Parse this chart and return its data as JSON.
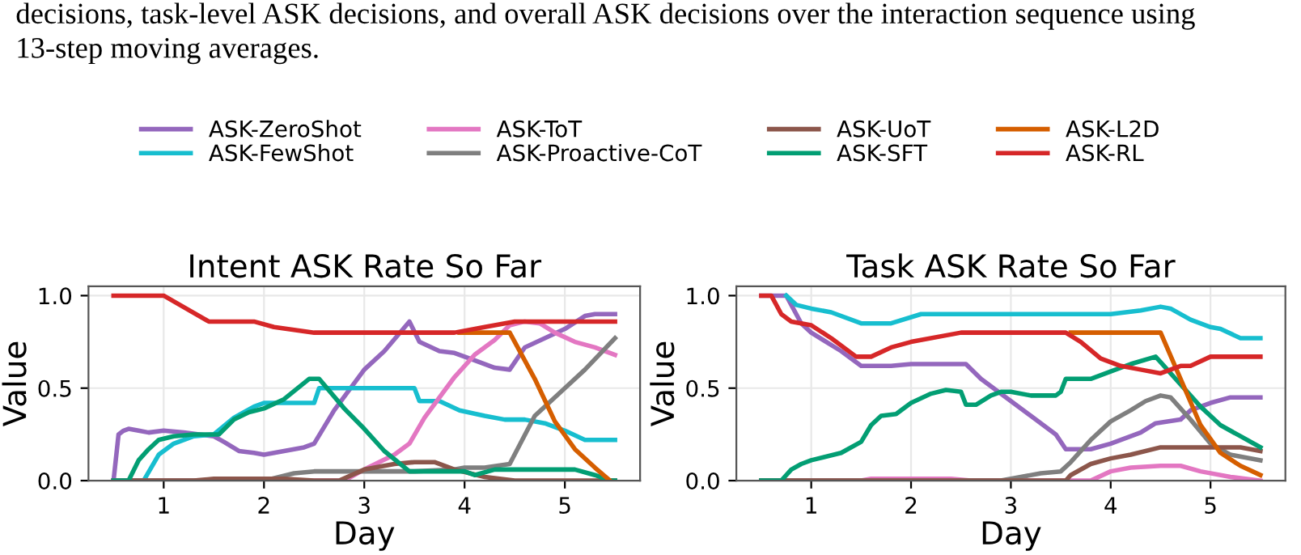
{
  "chart_data": [
    {
      "type": "line",
      "title": "Intent ASK Rate So Far",
      "xlabel": "Day",
      "ylabel": "Value",
      "xlim": [
        0.25,
        5.75
      ],
      "ylim": [
        0,
        1.05
      ],
      "xticks": [
        1,
        2,
        3,
        4,
        5
      ],
      "yticks": [
        {
          "value": 0,
          "label": "0.0"
        },
        {
          "value": 0.5,
          "label": "0.5"
        },
        {
          "value": 1,
          "label": "1.0"
        }
      ],
      "grid": true,
      "legend": "top",
      "line_style": "solid",
      "marker": "none",
      "annotations": [
        "decisions, task-level ASK decisions, and overall ASK decisions over the interaction sequence using",
        "13-step moving averages."
      ],
      "series": [
        {
          "name": "ASK-ZeroShot",
          "color": "#9467bd",
          "x": [
            0.5,
            0.55,
            0.6,
            0.65,
            0.75,
            0.85,
            1.0,
            1.2,
            1.5,
            1.6,
            1.75,
            1.9,
            2.0,
            2.2,
            2.4,
            2.5,
            2.7,
            3.0,
            3.2,
            3.45,
            3.55,
            3.75,
            3.9,
            4.1,
            4.3,
            4.45,
            4.6,
            4.8,
            5.0,
            5.2,
            5.3,
            5.5
          ],
          "values": [
            0,
            0.25,
            0.27,
            0.28,
            0.27,
            0.26,
            0.27,
            0.26,
            0.24,
            0.21,
            0.16,
            0.15,
            0.14,
            0.16,
            0.18,
            0.2,
            0.38,
            0.6,
            0.7,
            0.86,
            0.75,
            0.7,
            0.69,
            0.65,
            0.61,
            0.6,
            0.72,
            0.77,
            0.82,
            0.89,
            0.9,
            0.9
          ]
        },
        {
          "name": "ASK-FewShot",
          "color": "#17becf",
          "x": [
            0.5,
            0.8,
            0.95,
            1.1,
            1.3,
            1.5,
            1.7,
            1.9,
            2.0,
            2.5,
            2.55,
            3.5,
            3.55,
            3.75,
            3.95,
            4.2,
            4.4,
            4.6,
            4.8,
            5.0,
            5.2,
            5.5
          ],
          "values": [
            0,
            0,
            0.14,
            0.2,
            0.24,
            0.25,
            0.34,
            0.4,
            0.42,
            0.42,
            0.5,
            0.5,
            0.43,
            0.43,
            0.38,
            0.35,
            0.33,
            0.33,
            0.31,
            0.27,
            0.22,
            0.22
          ]
        },
        {
          "name": "ASK-ToT",
          "color": "#e377c2",
          "x": [
            0.5,
            2.8,
            3.0,
            3.3,
            3.45,
            3.6,
            3.9,
            4.1,
            4.3,
            4.45,
            4.6,
            4.75,
            4.9,
            5.1,
            5.3,
            5.5
          ],
          "values": [
            0,
            0,
            0.06,
            0.14,
            0.2,
            0.34,
            0.56,
            0.68,
            0.76,
            0.84,
            0.86,
            0.85,
            0.8,
            0.75,
            0.72,
            0.68
          ]
        },
        {
          "name": "ASK-Proactive-CoT",
          "color": "#7f7f7f",
          "x": [
            0.5,
            2.0,
            2.3,
            2.5,
            3.5,
            3.9,
            4.0,
            4.2,
            4.45,
            4.7,
            5.0,
            5.2,
            5.5
          ],
          "values": [
            0,
            0,
            0.04,
            0.05,
            0.05,
            0.06,
            0.07,
            0.07,
            0.09,
            0.35,
            0.5,
            0.6,
            0.77
          ]
        },
        {
          "name": "ASK-UoT",
          "color": "#8c564b",
          "x": [
            0.5,
            1.3,
            1.5,
            2.2,
            2.5,
            2.75,
            3.0,
            3.3,
            3.5,
            3.7,
            3.9,
            4.2,
            4.5,
            5.5
          ],
          "values": [
            0,
            0,
            0.01,
            0.01,
            0,
            0,
            0.06,
            0.09,
            0.1,
            0.1,
            0.06,
            0.02,
            0,
            0
          ]
        },
        {
          "name": "ASK-SFT",
          "color": "#029e73",
          "x": [
            0.5,
            0.65,
            0.75,
            0.85,
            0.95,
            1.1,
            1.3,
            1.55,
            1.7,
            1.85,
            2.0,
            2.2,
            2.45,
            2.55,
            2.8,
            3.0,
            3.2,
            3.45,
            4.0,
            4.1,
            4.3,
            5.1,
            5.3,
            5.45,
            5.5
          ],
          "values": [
            0,
            0,
            0.11,
            0.17,
            0.22,
            0.24,
            0.25,
            0.25,
            0.33,
            0.37,
            0.39,
            0.44,
            0.55,
            0.55,
            0.39,
            0.28,
            0.16,
            0.05,
            0.05,
            0.03,
            0.06,
            0.06,
            0.03,
            0,
            0
          ]
        },
        {
          "name": "ASK-L2D",
          "color": "#d55e00",
          "x": [
            3.95,
            4.45,
            4.7,
            4.9,
            5.1,
            5.3,
            5.45
          ],
          "values": [
            0.8,
            0.8,
            0.55,
            0.32,
            0.17,
            0.07,
            0
          ]
        },
        {
          "name": "ASK-RL",
          "color": "#d62728",
          "x": [
            0.5,
            1.0,
            1.45,
            1.9,
            2.1,
            2.5,
            3.9,
            4.2,
            4.5,
            5.5
          ],
          "values": [
            1,
            1,
            0.86,
            0.86,
            0.83,
            0.8,
            0.8,
            0.83,
            0.86,
            0.86
          ]
        }
      ]
    },
    {
      "type": "line",
      "title": "Task ASK Rate So Far",
      "xlabel": "Day",
      "ylabel": "Value",
      "xlim": [
        0.25,
        5.75
      ],
      "ylim": [
        0,
        1.05
      ],
      "xticks": [
        1,
        2,
        3,
        4,
        5
      ],
      "yticks": [
        {
          "value": 0,
          "label": "0.0"
        },
        {
          "value": 0.5,
          "label": "0.5"
        },
        {
          "value": 1,
          "label": "1.0"
        }
      ],
      "grid": true,
      "line_style": "solid",
      "marker": "none",
      "series": [
        {
          "color": "#9467bd",
          "x": [
            0.5,
            0.75,
            0.9,
            1.0,
            1.3,
            1.5,
            1.8,
            2.0,
            2.55,
            2.7,
            3.0,
            3.2,
            3.45,
            3.55,
            3.8,
            4.0,
            4.3,
            4.45,
            4.7,
            4.8,
            5.0,
            5.2,
            5.5
          ],
          "values": [
            1,
            1,
            0.85,
            0.8,
            0.7,
            0.62,
            0.62,
            0.63,
            0.63,
            0.55,
            0.43,
            0.35,
            0.25,
            0.17,
            0.17,
            0.2,
            0.26,
            0.31,
            0.33,
            0.38,
            0.42,
            0.45,
            0.45
          ]
        },
        {
          "color": "#17becf",
          "x": [
            0.75,
            0.85,
            1.0,
            1.2,
            1.5,
            1.8,
            2.1,
            4.0,
            4.3,
            4.5,
            4.6,
            4.8,
            5.0,
            5.1,
            5.3,
            5.5
          ],
          "values": [
            1,
            0.95,
            0.93,
            0.91,
            0.85,
            0.85,
            0.9,
            0.9,
            0.92,
            0.94,
            0.93,
            0.87,
            0.83,
            0.82,
            0.77,
            0.77
          ]
        },
        {
          "color": "#e377c2",
          "x": [
            0.5,
            1.5,
            1.6,
            2.4,
            2.6,
            3.8,
            4.0,
            4.2,
            4.5,
            4.7,
            4.9,
            5.2,
            5.5
          ],
          "values": [
            0,
            0,
            0.01,
            0.01,
            0,
            0,
            0.05,
            0.07,
            0.08,
            0.08,
            0.05,
            0.02,
            0
          ]
        },
        {
          "color": "#7f7f7f",
          "x": [
            0.5,
            2.9,
            3.1,
            3.3,
            3.5,
            3.6,
            3.8,
            4.0,
            4.2,
            4.35,
            4.5,
            4.6,
            4.8,
            5.0,
            5.2,
            5.5
          ],
          "values": [
            0,
            0,
            0.02,
            0.04,
            0.05,
            0.1,
            0.22,
            0.32,
            0.38,
            0.43,
            0.46,
            0.45,
            0.33,
            0.2,
            0.14,
            0.11
          ]
        },
        {
          "color": "#8c564b",
          "x": [
            0.5,
            3.55,
            3.6,
            3.8,
            4.0,
            4.2,
            4.5,
            5.3,
            5.5
          ],
          "values": [
            0,
            0,
            0.03,
            0.09,
            0.12,
            0.14,
            0.18,
            0.18,
            0.16
          ]
        },
        {
          "color": "#029e73",
          "x": [
            0.5,
            0.7,
            0.8,
            0.9,
            1.0,
            1.3,
            1.5,
            1.6,
            1.7,
            1.85,
            2.0,
            2.2,
            2.35,
            2.5,
            2.55,
            2.65,
            2.8,
            2.9,
            3.0,
            3.2,
            3.45,
            3.5,
            3.55,
            3.8,
            4.0,
            4.2,
            4.45,
            4.5,
            4.7,
            4.9,
            5.1,
            5.3,
            5.5
          ],
          "values": [
            0,
            0,
            0.06,
            0.09,
            0.11,
            0.15,
            0.21,
            0.3,
            0.35,
            0.36,
            0.42,
            0.47,
            0.49,
            0.48,
            0.41,
            0.41,
            0.46,
            0.48,
            0.48,
            0.46,
            0.46,
            0.48,
            0.55,
            0.55,
            0.59,
            0.63,
            0.67,
            0.64,
            0.52,
            0.4,
            0.3,
            0.24,
            0.18
          ]
        },
        {
          "color": "#d55e00",
          "x": [
            3.6,
            4.5,
            4.7,
            4.9,
            5.1,
            5.3,
            5.5
          ],
          "values": [
            0.8,
            0.8,
            0.55,
            0.3,
            0.15,
            0.08,
            0.03
          ]
        },
        {
          "color": "#d62728",
          "x": [
            0.5,
            0.6,
            0.7,
            0.8,
            1.0,
            1.2,
            1.45,
            1.6,
            1.8,
            2.0,
            2.5,
            3.55,
            3.7,
            3.9,
            4.1,
            4.3,
            4.5,
            4.6,
            4.7,
            4.8,
            5.0,
            5.5
          ],
          "values": [
            1,
            1,
            0.9,
            0.86,
            0.84,
            0.77,
            0.67,
            0.67,
            0.72,
            0.75,
            0.8,
            0.8,
            0.75,
            0.66,
            0.62,
            0.6,
            0.58,
            0.6,
            0.62,
            0.62,
            0.67,
            0.67
          ]
        }
      ]
    }
  ]
}
